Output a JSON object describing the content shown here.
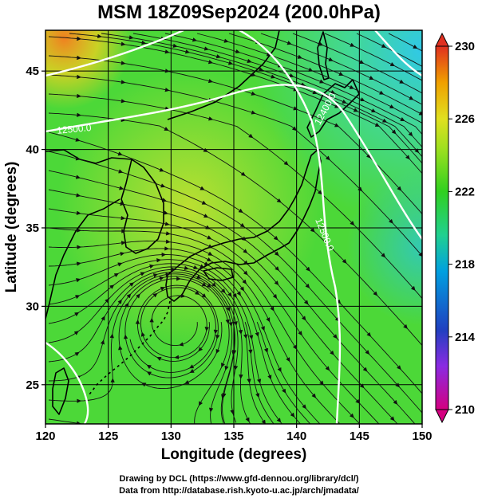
{
  "title": "MSM 18Z09Sep2024 (200.0hPa)",
  "x_axis": {
    "label": "Longitude (degrees)",
    "ticks": [
      "120",
      "125",
      "130",
      "135",
      "140",
      "145",
      "150"
    ],
    "range": [
      120,
      150
    ]
  },
  "y_axis": {
    "label": "Latitude  (degrees)",
    "ticks": [
      "25",
      "30",
      "35",
      "40",
      "45"
    ],
    "range": [
      22.5,
      47.6
    ]
  },
  "colorbar": {
    "ticks": [
      "230",
      "226",
      "222",
      "218",
      "214",
      "210"
    ],
    "range": [
      210,
      230
    ],
    "colors": [
      "#d40080",
      "#8a2be2",
      "#2040c0",
      "#00a0e0",
      "#20d090",
      "#30d020",
      "#a0e020",
      "#e0e020",
      "#f0a000",
      "#e03020"
    ]
  },
  "contours": [
    {
      "label": "12500.0",
      "lon": 122.3,
      "lat": 41.1
    },
    {
      "label": "12400.0",
      "lon": 142.5,
      "lat": 42.5
    },
    {
      "label": "12500.0",
      "lon": 142.0,
      "lat": 34.5
    }
  ],
  "credits": [
    "Drawing by DCL (https://www.gfd-dennou.org/library/dcl/)",
    "Data from http://database.rish.kyoto-u.ac.jp/arch/jmadata/"
  ],
  "chart_data": {
    "type": "heatmap",
    "title": "MSM 18Z09Sep2024 (200.0hPa)",
    "xlabel": "Longitude (degrees)",
    "ylabel": "Latitude  (degrees)",
    "xlim": [
      120,
      150
    ],
    "ylim": [
      22.5,
      47.6
    ],
    "colorbar_range": [
      210,
      230
    ],
    "contour_levels": [
      12400.0,
      12500.0
    ],
    "vortex_center": {
      "lon": 130.5,
      "lat": 29.0
    },
    "grid": true
  }
}
